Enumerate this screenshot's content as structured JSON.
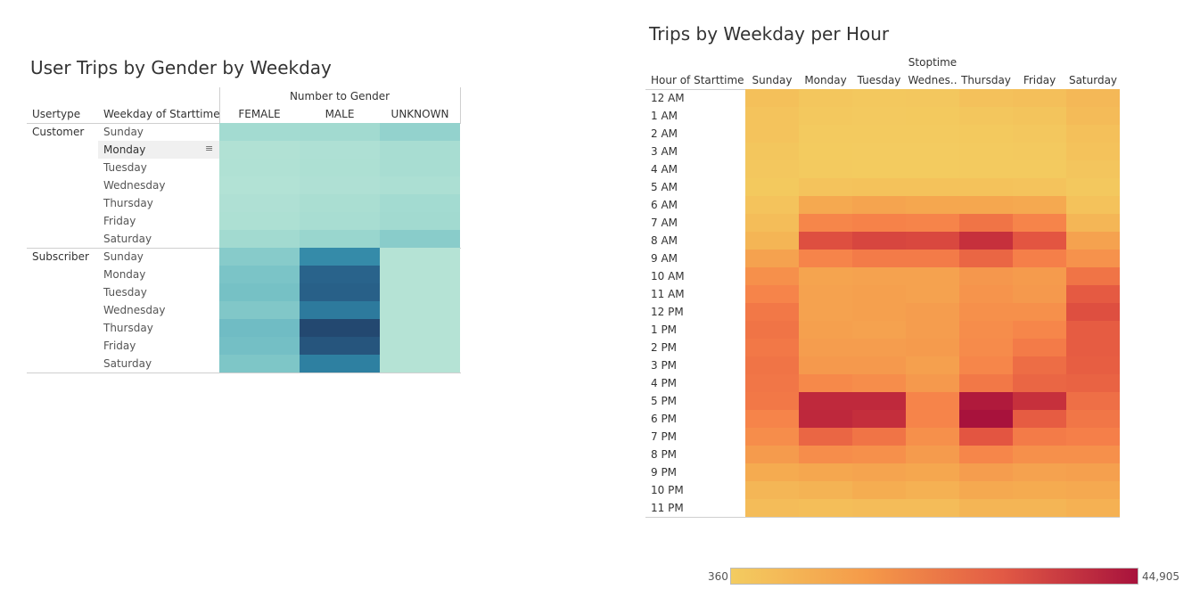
{
  "chart_data": [
    {
      "type": "heatmap",
      "title": "User Trips by Gender by Weekday",
      "column_group_header": "Number to Gender",
      "row_headers": [
        "Usertype",
        "Weekday of Starttime"
      ],
      "columns": [
        "FEMALE",
        "MALE",
        "UNKNOWN"
      ],
      "groups": [
        {
          "name": "Customer",
          "rows": [
            "Sunday",
            "Monday",
            "Tuesday",
            "Wednesday",
            "Thursday",
            "Friday",
            "Saturday"
          ],
          "values": [
            [
              2.4,
              2.6,
              3.6
            ],
            [
              0.7,
              1.1,
              1.9
            ],
            [
              0.8,
              1.2,
              1.8
            ],
            [
              0.6,
              1.0,
              1.4
            ],
            [
              1.0,
              1.6,
              2.4
            ],
            [
              1.2,
              1.8,
              2.6
            ],
            [
              2.6,
              3.2,
              4.3
            ]
          ]
        },
        {
          "name": "Subscriber",
          "rows": [
            "Sunday",
            "Monday",
            "Tuesday",
            "Wednesday",
            "Thursday",
            "Friday",
            "Saturday"
          ],
          "values": [
            [
              4.4,
              12.0,
              0.3
            ],
            [
              5.2,
              15.5,
              0.3
            ],
            [
              5.6,
              15.8,
              0.3
            ],
            [
              4.8,
              13.5,
              0.3
            ],
            [
              6.2,
              18.0,
              0.3
            ],
            [
              5.8,
              16.8,
              0.3
            ],
            [
              5.0,
              13.0,
              0.3
            ]
          ]
        }
      ],
      "range": [
        0,
        18
      ],
      "hover_row": "Monday",
      "hover_icon": "sort-icon"
    },
    {
      "type": "heatmap",
      "title": "Trips by Weekday per Hour",
      "column_group_header": "Stoptime",
      "row_header": "Hour of Starttime",
      "columns": [
        "Sunday",
        "Monday",
        "Tuesday",
        "Wednes..",
        "Thursday",
        "Friday",
        "Saturday"
      ],
      "rows": [
        "12 AM",
        "1 AM",
        "2 AM",
        "3 AM",
        "4 AM",
        "5 AM",
        "6 AM",
        "7 AM",
        "8 AM",
        "9 AM",
        "10 AM",
        "11 AM",
        "12 PM",
        "1 PM",
        "2 PM",
        "3 PM",
        "4 PM",
        "5 PM",
        "6 PM",
        "7 PM",
        "8 PM",
        "9 PM",
        "10 PM",
        "11 PM"
      ],
      "values": [
        [
          3500,
          1900,
          1500,
          1700,
          3200,
          3800,
          5500
        ],
        [
          2800,
          1400,
          1100,
          1200,
          1900,
          2500,
          4800
        ],
        [
          2600,
          1000,
          800,
          900,
          1200,
          1700,
          3500
        ],
        [
          2000,
          700,
          500,
          600,
          900,
          1100,
          3000
        ],
        [
          1700,
          800,
          700,
          700,
          900,
          900,
          2200
        ],
        [
          1200,
          2800,
          2900,
          3000,
          3000,
          2700,
          1500
        ],
        [
          2800,
          9500,
          10500,
          10000,
          10000,
          9500,
          3000
        ],
        [
          4200,
          17000,
          18000,
          17500,
          21000,
          17500,
          6000
        ],
        [
          6500,
          29000,
          31000,
          30500,
          36000,
          27500,
          11000
        ],
        [
          11000,
          17500,
          19500,
          19500,
          24000,
          18500,
          14500
        ],
        [
          15000,
          10500,
          11000,
          11000,
          13500,
          12500,
          21000
        ],
        [
          17500,
          11000,
          11500,
          11000,
          14000,
          13000,
          26500
        ],
        [
          20000,
          11000,
          11500,
          12000,
          15000,
          15000,
          29000
        ],
        [
          21000,
          11500,
          11000,
          12000,
          15500,
          17000,
          26000
        ],
        [
          20000,
          12000,
          12000,
          12500,
          16000,
          19500,
          26000
        ],
        [
          21000,
          13000,
          13000,
          11500,
          17000,
          22500,
          25500
        ],
        [
          20500,
          16500,
          15500,
          13000,
          20000,
          24000,
          24500
        ],
        [
          20000,
          38000,
          38000,
          17500,
          42500,
          36000,
          22000
        ],
        [
          17500,
          38500,
          36500,
          17500,
          44905,
          26000,
          20500
        ],
        [
          15500,
          24000,
          21000,
          15000,
          27500,
          19500,
          18500
        ],
        [
          12500,
          15500,
          15000,
          12500,
          17000,
          15000,
          15000
        ],
        [
          9000,
          10000,
          10500,
          10000,
          12000,
          11000,
          11500
        ],
        [
          6000,
          7000,
          8500,
          7500,
          9500,
          9000,
          9500
        ],
        [
          4500,
          4000,
          4500,
          4500,
          6500,
          6500,
          7500
        ]
      ],
      "range": [
        360,
        44905
      ],
      "legend": {
        "min_label": "360",
        "max_label": "44,905"
      }
    }
  ]
}
